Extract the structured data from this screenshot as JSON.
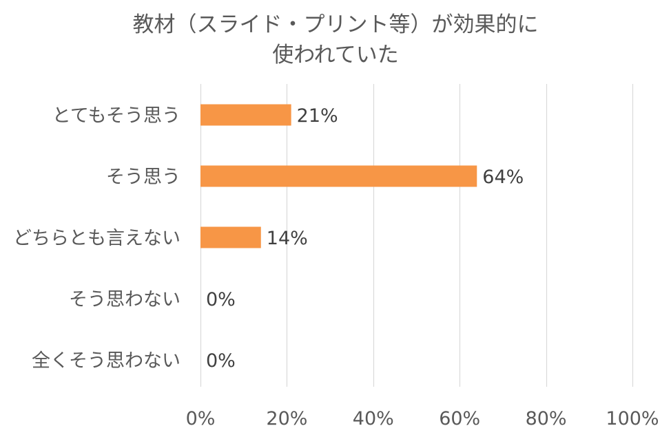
{
  "chart_data": {
    "type": "bar",
    "orientation": "horizontal",
    "title_lines": [
      "教材（スライド・プリント等）が効果的に",
      "使われていた"
    ],
    "categories": [
      "とてもそう思う",
      "そう思う",
      "どちらとも言えない",
      "そう思わない",
      "全くそう思わない"
    ],
    "values": [
      21,
      64,
      14,
      0,
      0
    ],
    "data_labels": [
      "21%",
      "64%",
      "14%",
      "0%",
      "0%"
    ],
    "xlim": [
      0,
      100
    ],
    "xticks": [
      0,
      20,
      40,
      60,
      80,
      100
    ],
    "xtick_labels": [
      "0%",
      "20%",
      "40%",
      "60%",
      "80%",
      "100%"
    ],
    "grid": true,
    "bar_color": "#F79646",
    "grid_color": "#D9D9D9"
  }
}
